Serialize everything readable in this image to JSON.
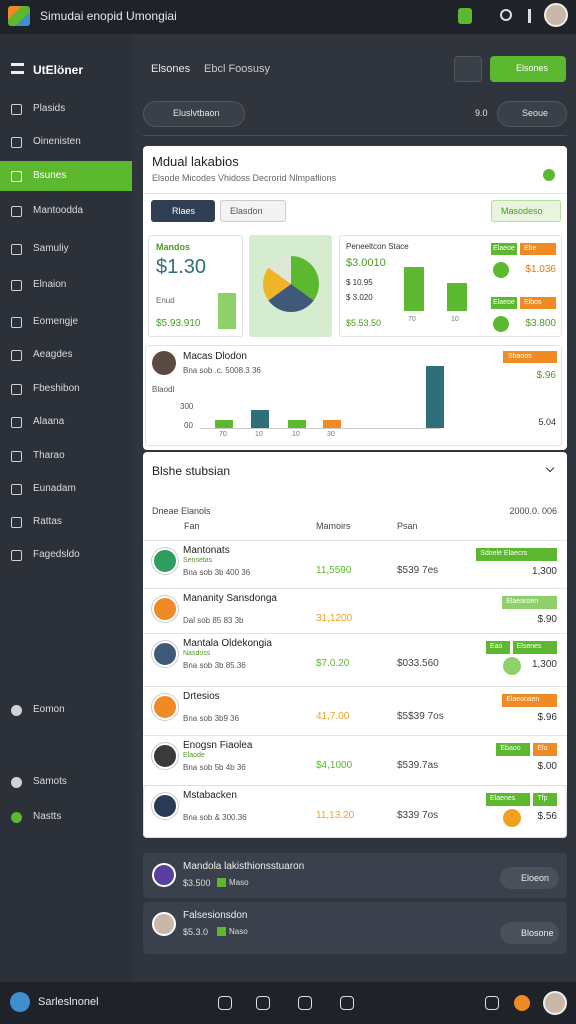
{
  "app": {
    "title": "Simudai enopid Umongiai"
  },
  "header": {
    "brand": "UtElöner",
    "tabs": [
      "Elsones",
      "Ebcl Foosusy"
    ],
    "action": "Elsones"
  },
  "toolbar": {
    "filter": "Eluslvtbaon",
    "count": "9.0",
    "sort": "Seoue"
  },
  "sidebar": {
    "items": [
      "Plasids",
      "Oinenisten",
      "Bsunes",
      "Mantoodda",
      "Samuliy",
      "Elnaion",
      "Eomengje",
      "Aeagdes",
      "Fbeshibon",
      "Alaana",
      "Tharao",
      "Eunadam",
      "Rattas",
      "Fagedsldo"
    ],
    "active": 2,
    "lower": [
      "Eomon",
      "Samots",
      "Nastts"
    ]
  },
  "overview": {
    "title": "Mdual lakabios",
    "subtitle": "Elsode Micodes Vhidoss Decrorid Nlmpaflions",
    "buttons": [
      "Rlaes",
      "Elasdon",
      "Masodeso"
    ],
    "stat": {
      "label": "Mandos",
      "value": "$1.30",
      "note": "Enud",
      "foot": "$5.93.910",
      "bar": 60,
      "ylim": [
        0,
        100
      ]
    },
    "pie": {
      "values": [
        35,
        30,
        20,
        15
      ],
      "colors": [
        "#5cb82e",
        "#3e5a78",
        "#f0b429",
        "#dfe7d6"
      ]
    },
    "revenue": {
      "title": "Peneeltcon Stace",
      "lines": [
        "$3.0010",
        "$ 10.95",
        "$ 3.020",
        "$5.53.50"
      ],
      "bars": [
        70,
        45
      ],
      "ylim": [
        0,
        70
      ],
      "axis": [
        "70",
        "10"
      ],
      "tags": [
        [
          "Elaeoe",
          "Ebe"
        ],
        [
          "Elaeoe",
          "Elbos"
        ]
      ],
      "values": [
        "$1.036",
        "$3.800"
      ]
    },
    "trend": {
      "name": "Macas Dlodon",
      "meta": "Bna sob .c. 5008.3 36",
      "axis_title": "Blaodl",
      "axis": [
        "300",
        "00"
      ],
      "x": [
        "70",
        "10",
        "10",
        "30"
      ],
      "bars": [
        8,
        18,
        8,
        8,
        62
      ],
      "colors": [
        "#5cb82e",
        "#2f6f7a",
        "#5cb82e",
        "#f08a24",
        "#2f6f7a"
      ],
      "ylim": [
        0,
        70
      ],
      "tag": "Sbaoos",
      "value": "$.96",
      "foot": "5.04"
    }
  },
  "list": {
    "title": "Blshe stubsian",
    "group": "Dneae Elanols",
    "date": "2000.0. 006",
    "columns": [
      "Fan",
      "Mamoirs",
      "Psan"
    ],
    "rows": [
      {
        "name": "Mantonats",
        "sub": "Sensetas",
        "meta": "Bna sob 3b 400 36",
        "v1": "11,5590",
        "v1_color": "#5cb82e",
        "v2": "$539 7es",
        "tags": [
          "Sdnele Elaecrs"
        ],
        "value": "1,300",
        "icon_color": "#2e9e5e"
      },
      {
        "name": "Mananity Sansdonga",
        "meta": "Dal sob 85 83 3b",
        "v1": "31,1200",
        "v1_color": "#f0a020",
        "v2": "",
        "tags": [
          "Elaearoen"
        ],
        "value": "$.90",
        "icon_color": "#f08a24"
      },
      {
        "name": "Mantala Oldekongia",
        "sub": "Nasdoss",
        "meta": "Bna sob 3b 85.36",
        "v1": "$7.0.20",
        "v1_color": "#5cb82e",
        "v2": "$033.560",
        "tags": [
          "Eao",
          "Elsenes"
        ],
        "value": "1,300",
        "icon_color": "#3e5a78"
      },
      {
        "name": "Drtesios",
        "meta": "Bna sob 3b9 36",
        "v1": "41,7.00",
        "v1_color": "#f0a020",
        "v2": "$5$39 7os",
        "tags": [
          "Elaeonsen"
        ],
        "value": "$.96",
        "icon_color": "#f08a24"
      },
      {
        "name": "Enogsn Fiaolea",
        "sub": "Elaode",
        "meta": "Bna sob 5b 4b 36",
        "v1": "$4,1000",
        "v1_color": "#5cb82e",
        "v2": "$539.7as",
        "tags": [
          "Ebaoo",
          "Elo"
        ],
        "value": "$.00",
        "icon_color": "#3a3a3a"
      },
      {
        "name": "Mstabacken",
        "meta": "Bna sob & 300.36",
        "v1": "11,13.20",
        "v1_color": "#f0a020",
        "v2": "$339 7os",
        "tags": [
          "Elaenes",
          "Tfp"
        ],
        "value": "$.56",
        "icon_color": "#2b3a55"
      }
    ]
  },
  "cards": [
    {
      "title": "Mandola lakisthionsstuaron",
      "amount": "$3.500",
      "badge": "Maso",
      "action": "Eloeon"
    },
    {
      "title": "Falsesionsdon",
      "amount": "$5.3.0",
      "badge": "Naso",
      "action": "Blosone"
    }
  ],
  "footer": {
    "label": "Sarleslnonel"
  }
}
